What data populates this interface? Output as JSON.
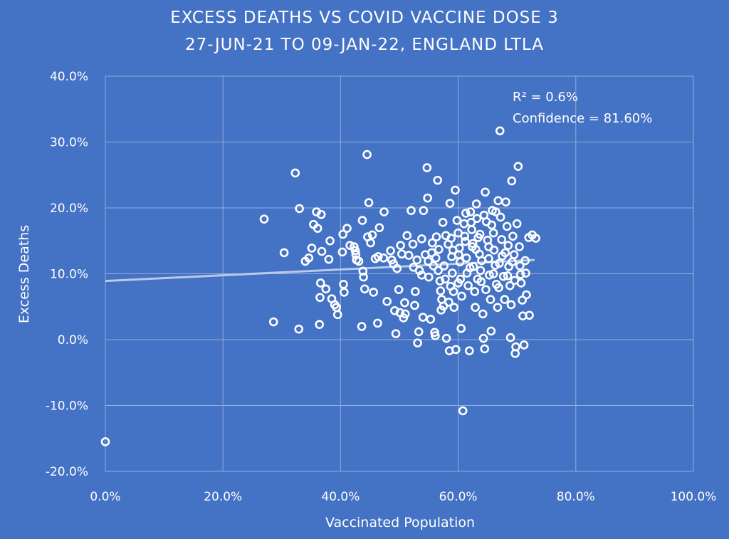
{
  "chart_data": {
    "type": "scatter",
    "title_line1": "EXCESS DEATHS VS COVID VACCINE DOSE 3",
    "title_line2": "27-JUN-21 TO 09-JAN-22, ENGLAND LTLA",
    "xlabel": "Vaccinated Population",
    "ylabel": "Excess Deaths",
    "xlim": [
      0,
      100
    ],
    "ylim": [
      -20,
      40
    ],
    "x_ticks": [
      0,
      20,
      40,
      60,
      80,
      100
    ],
    "y_ticks": [
      -20,
      -10,
      0,
      10,
      20,
      30,
      40
    ],
    "x_tick_labels": [
      "0.0%",
      "20.0%",
      "40.0%",
      "60.0%",
      "80.0%",
      "100.0%"
    ],
    "y_tick_labels": [
      "-20.0%",
      "-10.0%",
      "0.0%",
      "10.0%",
      "20.0%",
      "30.0%",
      "40.0%"
    ],
    "grid": true,
    "trendline": {
      "x": [
        0,
        73
      ],
      "y": [
        8.9,
        12.1
      ]
    },
    "annotations": [
      "R² = 0.6%",
      "Confidence = 81.60%"
    ],
    "colors": {
      "background": "#4472c4",
      "marker": "#ffffff",
      "grid": "#93acdb",
      "trend": "#b8c9ea"
    },
    "points": [
      [
        0,
        -15.5
      ],
      [
        27,
        18.3
      ],
      [
        28.6,
        2.7
      ],
      [
        30.4,
        13.2
      ],
      [
        32.3,
        25.3
      ],
      [
        33,
        19.9
      ],
      [
        32.9,
        1.6
      ],
      [
        34,
        11.9
      ],
      [
        34.6,
        12.4
      ],
      [
        35.1,
        13.9
      ],
      [
        35.4,
        17.5
      ],
      [
        36.1,
        16.9
      ],
      [
        35.9,
        19.4
      ],
      [
        36.6,
        8.6
      ],
      [
        36.7,
        19
      ],
      [
        36.5,
        6.4
      ],
      [
        36.4,
        2.3
      ],
      [
        36.8,
        13.4
      ],
      [
        37.5,
        7.7
      ],
      [
        38.2,
        15
      ],
      [
        38,
        12.2
      ],
      [
        38.5,
        6.2
      ],
      [
        39,
        5.3
      ],
      [
        39.3,
        4.9
      ],
      [
        39.5,
        3.8
      ],
      [
        40.3,
        13.3
      ],
      [
        40.4,
        16
      ],
      [
        40.5,
        8.4
      ],
      [
        40.6,
        7.2
      ],
      [
        41.1,
        16.9
      ],
      [
        41.6,
        14.3
      ],
      [
        42.3,
        14.1
      ],
      [
        42.5,
        13.5
      ],
      [
        42.6,
        12.9
      ],
      [
        42.7,
        12.1
      ],
      [
        43.1,
        11.9
      ],
      [
        43.6,
        2
      ],
      [
        43.7,
        18.1
      ],
      [
        43.8,
        10.4
      ],
      [
        43.9,
        9.5
      ],
      [
        44.1,
        7.7
      ],
      [
        44.5,
        28.1
      ],
      [
        44.8,
        20.8
      ],
      [
        44.6,
        15.6
      ],
      [
        45.1,
        14.7
      ],
      [
        45.4,
        15.9
      ],
      [
        45.6,
        7.2
      ],
      [
        45.9,
        12.3
      ],
      [
        46.3,
        2.5
      ],
      [
        46.4,
        12.6
      ],
      [
        46.6,
        17
      ],
      [
        47.3,
        12.4
      ],
      [
        47.4,
        19.4
      ],
      [
        47.9,
        5.8
      ],
      [
        48.5,
        13.5
      ],
      [
        48.7,
        12.1
      ],
      [
        49,
        11.5
      ],
      [
        49.2,
        4.4
      ],
      [
        49.4,
        0.9
      ],
      [
        49.6,
        10.8
      ],
      [
        49.9,
        7.6
      ],
      [
        50.1,
        4.1
      ],
      [
        50.2,
        14.3
      ],
      [
        50.4,
        13
      ],
      [
        50.7,
        3.3
      ],
      [
        50.9,
        5.6
      ],
      [
        51,
        3.9
      ],
      [
        51.3,
        15.8
      ],
      [
        51.6,
        12.8
      ],
      [
        52,
        19.6
      ],
      [
        52.3,
        14.5
      ],
      [
        52.4,
        11
      ],
      [
        52.6,
        5.2
      ],
      [
        52.7,
        7.3
      ],
      [
        53,
        12.1
      ],
      [
        53.1,
        -0.5
      ],
      [
        53.3,
        1.2
      ],
      [
        53.4,
        10.5
      ],
      [
        53.8,
        9.8
      ],
      [
        53.8,
        15.3
      ],
      [
        54,
        3.4
      ],
      [
        54.1,
        19.6
      ],
      [
        54.4,
        12.9
      ],
      [
        54.7,
        26.1
      ],
      [
        54.8,
        21.5
      ],
      [
        54.9,
        11.9
      ],
      [
        55,
        9.5
      ],
      [
        55.3,
        3.1
      ],
      [
        55.6,
        14.7
      ],
      [
        55.8,
        11.2
      ],
      [
        56,
        1.1
      ],
      [
        56.1,
        0.6
      ],
      [
        56.3,
        15.6
      ],
      [
        56.5,
        24.2
      ],
      [
        56.7,
        13.7
      ],
      [
        56.6,
        10.5
      ],
      [
        56.9,
        8.9
      ],
      [
        57,
        7.4
      ],
      [
        57.2,
        6.1
      ],
      [
        57.1,
        4.5
      ],
      [
        57.4,
        17.8
      ],
      [
        57.6,
        11.2
      ],
      [
        57.8,
        9.2
      ],
      [
        58,
        0.2
      ],
      [
        58.3,
        14.5
      ],
      [
        58.4,
        5.7
      ],
      [
        58.6,
        20.7
      ],
      [
        58.8,
        15.4
      ],
      [
        58.9,
        12.6
      ],
      [
        59,
        10.1
      ],
      [
        59.2,
        7.3
      ],
      [
        58.5,
        -1.7
      ],
      [
        59.6,
        -1.5
      ],
      [
        59.5,
        22.7
      ],
      [
        59.8,
        18.1
      ],
      [
        60,
        16.2
      ],
      [
        60.2,
        13.9
      ],
      [
        60.3,
        11.8
      ],
      [
        60.4,
        9.2
      ],
      [
        60.6,
        6.6
      ],
      [
        60.5,
        1.7
      ],
      [
        60.8,
        -10.8
      ],
      [
        61,
        17.6
      ],
      [
        61.2,
        14.9
      ],
      [
        61.4,
        12.4
      ],
      [
        61.5,
        10.1
      ],
      [
        61.7,
        8.2
      ],
      [
        61.9,
        -1.7
      ],
      [
        62.1,
        19.4
      ],
      [
        62.3,
        16.7
      ],
      [
        62.4,
        14.1
      ],
      [
        62.6,
        11.1
      ],
      [
        62.8,
        7.3
      ],
      [
        62.9,
        4.9
      ],
      [
        63.1,
        20.6
      ],
      [
        63.2,
        18.4
      ],
      [
        63.4,
        15.5
      ],
      [
        63.6,
        13
      ],
      [
        63.8,
        10.5
      ],
      [
        63.9,
        8.8
      ],
      [
        64.2,
        3.9
      ],
      [
        64.3,
        0.2
      ],
      [
        64.5,
        -1.4
      ],
      [
        64.6,
        22.4
      ],
      [
        64.8,
        17.9
      ],
      [
        65,
        15.1
      ],
      [
        65.2,
        12.3
      ],
      [
        65.3,
        9.8
      ],
      [
        65.5,
        6.1
      ],
      [
        65.6,
        1.3
      ],
      [
        65.8,
        19.6
      ],
      [
        66,
        16.2
      ],
      [
        66.1,
        13.6
      ],
      [
        66.3,
        11.3
      ],
      [
        66.5,
        8.4
      ],
      [
        66.7,
        4.9
      ],
      [
        66.8,
        21.1
      ],
      [
        67.1,
        31.7
      ],
      [
        67.2,
        18.6
      ],
      [
        67.4,
        15.2
      ],
      [
        67.5,
        12.7
      ],
      [
        67.7,
        9.6
      ],
      [
        67.9,
        6.1
      ],
      [
        68.1,
        20.9
      ],
      [
        68.3,
        17.2
      ],
      [
        68.5,
        14.3
      ],
      [
        68.6,
        11.1
      ],
      [
        68.8,
        8.2
      ],
      [
        69,
        5.3
      ],
      [
        68.9,
        0.3
      ],
      [
        69.1,
        24.1
      ],
      [
        69.3,
        15.7
      ],
      [
        69.5,
        12.9
      ],
      [
        69.6,
        9
      ],
      [
        69.8,
        -1.1
      ],
      [
        69.7,
        -2.1
      ],
      [
        70,
        17.6
      ],
      [
        70.2,
        26.3
      ],
      [
        70.4,
        14.1
      ],
      [
        70.5,
        11.2
      ],
      [
        70.7,
        8.6
      ],
      [
        70.9,
        6
      ],
      [
        71,
        3.6
      ],
      [
        71.2,
        -0.8
      ],
      [
        71.4,
        12
      ],
      [
        71.5,
        10.1
      ],
      [
        71.6,
        6.8
      ],
      [
        72,
        15.5
      ],
      [
        72.1,
        3.7
      ],
      [
        72.6,
        15.9
      ],
      [
        73.2,
        15.4
      ],
      [
        62,
        10.9
      ],
      [
        63,
        13.7
      ],
      [
        64,
        12
      ],
      [
        65.2,
        14.1
      ],
      [
        66,
        10
      ],
      [
        67,
        11.6
      ],
      [
        60,
        8.6
      ],
      [
        58.7,
        8.1
      ],
      [
        59.3,
        4.9
      ],
      [
        57.5,
        5.1
      ],
      [
        61.3,
        19.2
      ],
      [
        62.2,
        17.8
      ],
      [
        63.7,
        16
      ],
      [
        64.4,
        18.9
      ],
      [
        65.7,
        17.4
      ],
      [
        66.4,
        19.4
      ],
      [
        68,
        13.2
      ],
      [
        69.2,
        11.8
      ],
      [
        70.6,
        9.9
      ],
      [
        55.5,
        13.2
      ],
      [
        56.2,
        12.4
      ],
      [
        57.9,
        15.8
      ],
      [
        59.1,
        13.6
      ],
      [
        60.1,
        12.9
      ],
      [
        61.1,
        15.7
      ],
      [
        62.5,
        14.6
      ],
      [
        63.3,
        9.2
      ],
      [
        64.7,
        7.6
      ],
      [
        66.9,
        7.9
      ],
      [
        68.4,
        9.7
      ]
    ]
  }
}
